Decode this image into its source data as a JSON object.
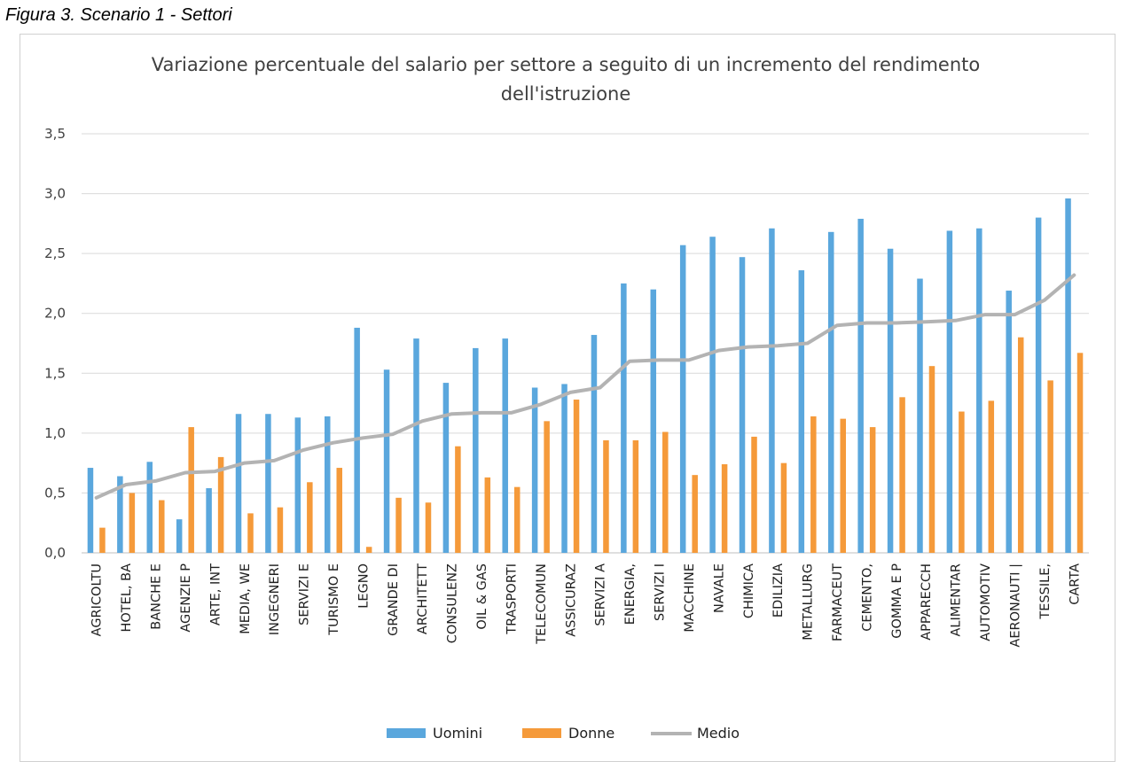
{
  "figure_caption": "Figura 3. Scenario 1 - Settori",
  "chart_data": {
    "type": "bar",
    "title_line1": "Variazione percentuale del salario per settore a seguito di un incremento del rendimento",
    "title_line2": "dell'istruzione",
    "ylim": [
      0,
      3.5
    ],
    "yticks": [
      "0,0",
      "0,5",
      "1,0",
      "1,5",
      "2,0",
      "2,5",
      "3,0",
      "3,5"
    ],
    "grid": true,
    "legend_position": "bottom",
    "categories": [
      "AGRICOLTU",
      "HOTEL, BA",
      "BANCHE E",
      "AGENZIE P",
      "ARTE, INT",
      "MEDIA, WE",
      "INGEGNERI",
      "SERVIZI E",
      "TURISMO E",
      "LEGNO",
      "GRANDE DI",
      "ARCHITETT",
      "CONSULENZ",
      "OIL & GAS",
      "TRASPORTI",
      "TELECOMUN",
      "ASSICURAZ",
      "SERVIZI A",
      "ENERGIA,",
      "SERVIZI I",
      "MACCHINE",
      "NAVALE",
      "CHIMICA",
      "EDILIZIA",
      "METALLURG",
      "FARMACEUT",
      "CEMENTO,",
      "GOMMA E P",
      "APPARECCH",
      "ALIMENTAR",
      "AUTOMOTIV",
      "AERONAUTI |",
      "TESSILE,",
      "CARTA"
    ],
    "series": [
      {
        "name": "Uomini",
        "kind": "bar",
        "color": "#5aa7dd",
        "values": [
          0.71,
          0.64,
          0.76,
          0.28,
          0.54,
          1.16,
          1.16,
          1.13,
          1.14,
          1.88,
          1.53,
          1.79,
          1.42,
          1.71,
          1.79,
          1.38,
          1.41,
          1.82,
          2.25,
          2.2,
          2.57,
          2.64,
          2.47,
          2.71,
          2.36,
          2.68,
          2.79,
          2.54,
          2.29,
          2.69,
          2.71,
          2.19,
          2.8,
          2.96
        ]
      },
      {
        "name": "Donne",
        "kind": "bar",
        "color": "#f59a3a",
        "values": [
          0.21,
          0.5,
          0.44,
          1.05,
          0.8,
          0.33,
          0.38,
          0.59,
          0.71,
          0.05,
          0.46,
          0.42,
          0.89,
          0.63,
          0.55,
          1.1,
          1.28,
          0.94,
          0.94,
          1.01,
          0.65,
          0.74,
          0.97,
          0.75,
          1.14,
          1.12,
          1.05,
          1.3,
          1.56,
          1.18,
          1.27,
          1.8,
          1.44,
          1.67
        ]
      },
      {
        "name": "Medio",
        "kind": "line",
        "color": "#b3b3b3",
        "values": [
          0.46,
          0.57,
          0.6,
          0.67,
          0.68,
          0.75,
          0.77,
          0.86,
          0.92,
          0.96,
          0.99,
          1.1,
          1.16,
          1.17,
          1.17,
          1.24,
          1.34,
          1.38,
          1.6,
          1.61,
          1.61,
          1.69,
          1.72,
          1.73,
          1.75,
          1.9,
          1.92,
          1.92,
          1.93,
          1.94,
          1.99,
          1.99,
          2.11,
          2.32
        ]
      }
    ]
  }
}
